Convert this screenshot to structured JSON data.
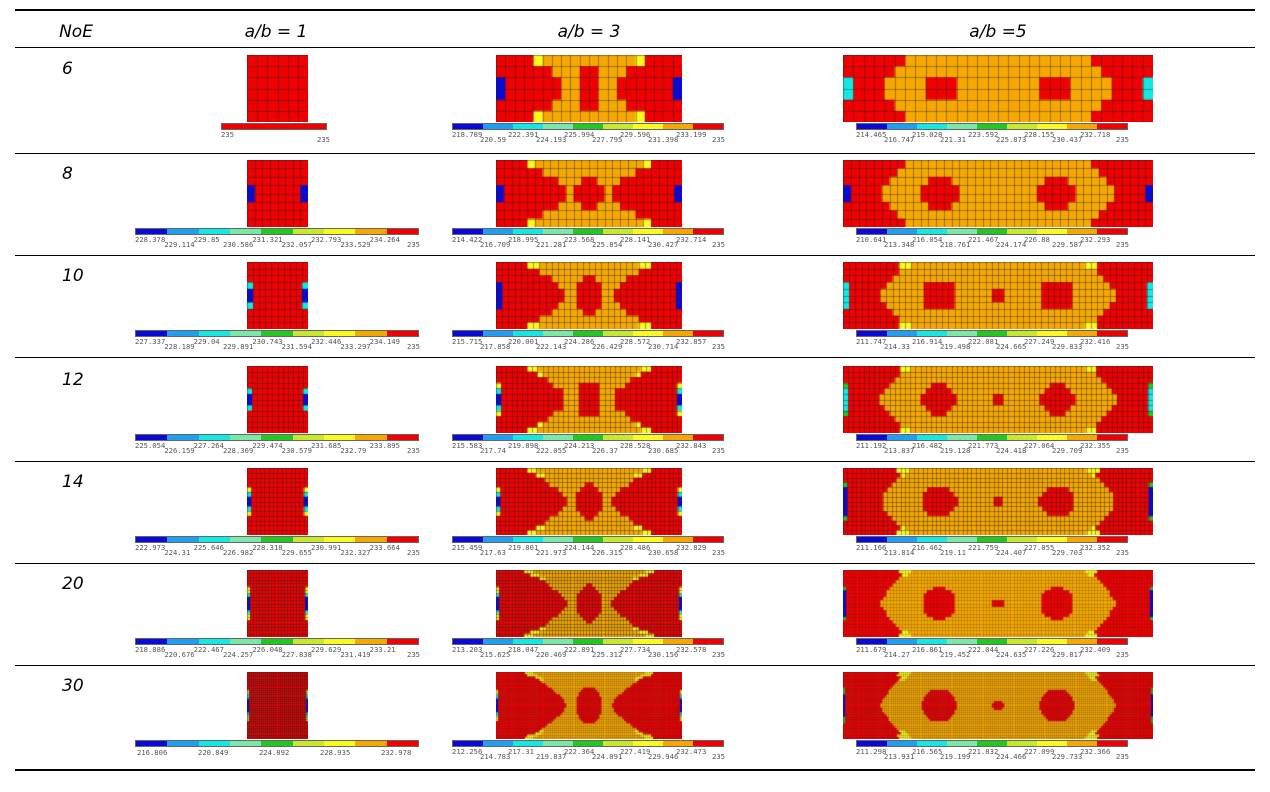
{
  "colors": {
    "palette": [
      "#0a0ad8",
      "#1f9ff2",
      "#13e8e2",
      "#7ce8a8",
      "#22c822",
      "#c8e82e",
      "#fafa1e",
      "#f6a800",
      "#f00000"
    ],
    "grid_line": "#222222"
  },
  "table": {
    "headers": [
      "NoE",
      "a/b = 1",
      "a/b = 3",
      "a/b =5"
    ],
    "rows": [
      {
        "noe": "6",
        "cells": [
          {
            "mesh": {
              "nx": 6,
              "ny": 6,
              "pattern": "ab1_6"
            },
            "legend": {
              "nseg": 1,
              "colors": [
                "#f00000"
              ],
              "ticks": [
                "235",
                "235"
              ]
            }
          },
          {
            "mesh": {
              "nx": 20,
              "ny": 6,
              "pattern": "ab3"
            },
            "legend": {
              "nseg": 9,
              "ticks": [
                "218.789",
                "220.59",
                "222.391",
                "224.193",
                "225.994",
                "227.795",
                "229.596",
                "231.398",
                "233.199",
                "235"
              ]
            }
          },
          {
            "mesh": {
              "nx": 30,
              "ny": 6,
              "pattern": "ab5"
            },
            "legend": {
              "nseg": 9,
              "ticks": [
                "214.465",
                "216.747",
                "219.028",
                "221.31",
                "223.592",
                "225.873",
                "228.155",
                "230.437",
                "232.718",
                "235"
              ]
            }
          }
        ]
      },
      {
        "noe": "8",
        "cells": [
          {
            "mesh": {
              "nx": 8,
              "ny": 8,
              "pattern": "ab1"
            },
            "legend": {
              "nseg": 9,
              "ticks": [
                "228.378",
                "229.114",
                "229.85",
                "230.586",
                "231.321",
                "232.057",
                "232.793",
                "233.529",
                "234.264",
                "235"
              ]
            }
          },
          {
            "mesh": {
              "nx": 24,
              "ny": 8,
              "pattern": "ab3"
            },
            "legend": {
              "nseg": 9,
              "ticks": [
                "214.422",
                "216.709",
                "218.995",
                "221.281",
                "223.568",
                "225.854",
                "228.141",
                "230.427",
                "232.714",
                "235"
              ]
            }
          },
          {
            "mesh": {
              "nx": 40,
              "ny": 8,
              "pattern": "ab5"
            },
            "legend": {
              "nseg": 9,
              "ticks": [
                "210.641",
                "213.348",
                "216.054",
                "218.761",
                "221.467",
                "224.174",
                "226.88",
                "229.587",
                "232.293",
                "235"
              ]
            }
          }
        ]
      },
      {
        "noe": "10",
        "cells": [
          {
            "mesh": {
              "nx": 10,
              "ny": 10,
              "pattern": "ab1"
            },
            "legend": {
              "nseg": 9,
              "ticks": [
                "227.337",
                "228.189",
                "229.04",
                "229.891",
                "230.743",
                "231.594",
                "232.446",
                "233.297",
                "234.149",
                "235"
              ]
            }
          },
          {
            "mesh": {
              "nx": 30,
              "ny": 10,
              "pattern": "ab3"
            },
            "legend": {
              "nseg": 9,
              "ticks": [
                "215.715",
                "217.858",
                "220.001",
                "222.143",
                "224.286",
                "226.429",
                "228.572",
                "230.714",
                "232.857",
                "235"
              ]
            }
          },
          {
            "mesh": {
              "nx": 50,
              "ny": 10,
              "pattern": "ab5"
            },
            "legend": {
              "nseg": 9,
              "ticks": [
                "211.747",
                "214.33",
                "216.914",
                "219.498",
                "222.081",
                "224.665",
                "227.249",
                "229.833",
                "232.416",
                "235"
              ]
            }
          }
        ]
      },
      {
        "noe": "12",
        "cells": [
          {
            "mesh": {
              "nx": 12,
              "ny": 12,
              "pattern": "ab1"
            },
            "legend": {
              "nseg": 9,
              "ticks": [
                "225.054",
                "226.159",
                "227.264",
                "228.369",
                "229.474",
                "230.579",
                "231.685",
                "232.79",
                "233.895",
                "235"
              ]
            }
          },
          {
            "mesh": {
              "nx": 36,
              "ny": 12,
              "pattern": "ab3"
            },
            "legend": {
              "nseg": 9,
              "ticks": [
                "215.583",
                "217.74",
                "219.898",
                "222.055",
                "224.213",
                "226.37",
                "228.528",
                "230.685",
                "232.843",
                "235"
              ]
            }
          },
          {
            "mesh": {
              "nx": 60,
              "ny": 12,
              "pattern": "ab5"
            },
            "legend": {
              "nseg": 9,
              "ticks": [
                "211.192",
                "213.837",
                "216.482",
                "219.128",
                "221.773",
                "224.418",
                "227.064",
                "229.709",
                "232.355",
                "235"
              ]
            }
          }
        ]
      },
      {
        "noe": "14",
        "cells": [
          {
            "mesh": {
              "nx": 14,
              "ny": 14,
              "pattern": "ab1"
            },
            "legend": {
              "nseg": 9,
              "ticks": [
                "222.973",
                "224.31",
                "225.646",
                "226.982",
                "228.318",
                "229.655",
                "230.991",
                "232.327",
                "233.664",
                "235"
              ]
            }
          },
          {
            "mesh": {
              "nx": 42,
              "ny": 14,
              "pattern": "ab3"
            },
            "legend": {
              "nseg": 9,
              "ticks": [
                "215.459",
                "217.63",
                "219.801",
                "221.973",
                "224.144",
                "226.315",
                "228.486",
                "230.658",
                "232.829",
                "235"
              ]
            }
          },
          {
            "mesh": {
              "nx": 70,
              "ny": 14,
              "pattern": "ab5"
            },
            "legend": {
              "nseg": 9,
              "ticks": [
                "211.166",
                "213.814",
                "216.462",
                "219.11",
                "221.759",
                "224.407",
                "227.055",
                "229.703",
                "232.352",
                "235"
              ]
            }
          }
        ]
      },
      {
        "noe": "20",
        "cells": [
          {
            "mesh": {
              "nx": 20,
              "ny": 20,
              "pattern": "ab1"
            },
            "legend": {
              "nseg": 9,
              "ticks": [
                "218.886",
                "220.676",
                "222.467",
                "224.257",
                "226.048",
                "227.838",
                "229.629",
                "231.419",
                "233.21",
                "235"
              ]
            }
          },
          {
            "mesh": {
              "nx": 60,
              "ny": 20,
              "pattern": "ab3"
            },
            "legend": {
              "nseg": 9,
              "ticks": [
                "213.203",
                "215.625",
                "218.047",
                "220.469",
                "222.891",
                "225.312",
                "227.734",
                "230.156",
                "232.578",
                "235"
              ]
            }
          },
          {
            "mesh": {
              "nx": 100,
              "ny": 20,
              "pattern": "ab5"
            },
            "legend": {
              "nseg": 9,
              "ticks": [
                "211.679",
                "214.27",
                "216.861",
                "219.452",
                "222.044",
                "224.635",
                "227.226",
                "229.817",
                "232.409",
                "235"
              ]
            }
          }
        ]
      },
      {
        "noe": "30",
        "cells": [
          {
            "mesh": {
              "nx": 30,
              "ny": 30,
              "pattern": "ab1"
            },
            "legend": {
              "nseg": 9,
              "ticks": [
                "216.806",
                "220.849",
                "224.892",
                "228.935",
                "232.978"
              ]
            }
          },
          {
            "mesh": {
              "nx": 90,
              "ny": 30,
              "pattern": "ab3"
            },
            "legend": {
              "nseg": 9,
              "ticks": [
                "212.256",
                "214.783",
                "217.31",
                "219.837",
                "222.364",
                "224.891",
                "227.419",
                "229.946",
                "232.473",
                "235"
              ]
            }
          },
          {
            "mesh": {
              "nx": 150,
              "ny": 30,
              "pattern": "ab5"
            },
            "legend": {
              "nseg": 9,
              "ticks": [
                "211.298",
                "213.931",
                "216.565",
                "219.199",
                "221.832",
                "224.466",
                "227.099",
                "229.733",
                "232.366",
                "235"
              ]
            }
          }
        ]
      }
    ]
  }
}
